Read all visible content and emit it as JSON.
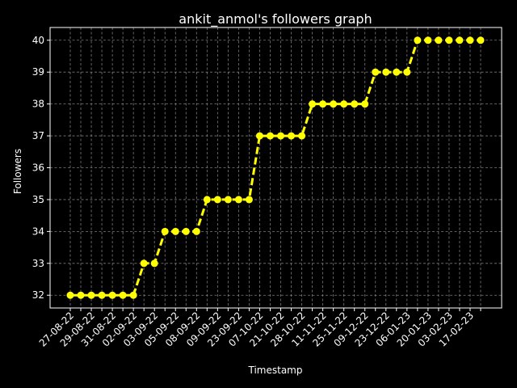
{
  "chart_data": {
    "type": "line",
    "title": "ankit_anmol's followers graph",
    "xlabel": "Timestamp",
    "ylabel": "Followers",
    "ylim": [
      31.6,
      40.4
    ],
    "yticks": [
      32,
      33,
      34,
      35,
      36,
      37,
      38,
      39,
      40
    ],
    "grid": true,
    "x_tick_labels": [
      "27-08-22",
      "29-08-22",
      "31-08-22",
      "02-09-22",
      "03-09-22",
      "05-09-22",
      "08-09-22",
      "09-09-22",
      "23-09-22",
      "07-10-22",
      "21-10-22",
      "28-10-22",
      "11-11-22",
      "25-11-22",
      "09-12-22",
      "23-12-22",
      "06-01-23",
      "20-01-23",
      "03-02-23",
      "17-02-23"
    ],
    "series": [
      {
        "values": [
          32,
          32,
          32,
          32,
          32,
          32,
          32,
          33,
          33,
          34,
          34,
          34,
          34,
          35,
          35,
          35,
          35,
          35,
          37,
          37,
          37,
          37,
          37,
          38,
          38,
          38,
          38,
          38,
          38,
          39,
          39,
          39,
          39,
          40,
          40,
          40,
          40,
          40,
          40,
          40
        ],
        "color": "#ffff00",
        "line_style": "dashed",
        "marker": "circle"
      }
    ]
  }
}
